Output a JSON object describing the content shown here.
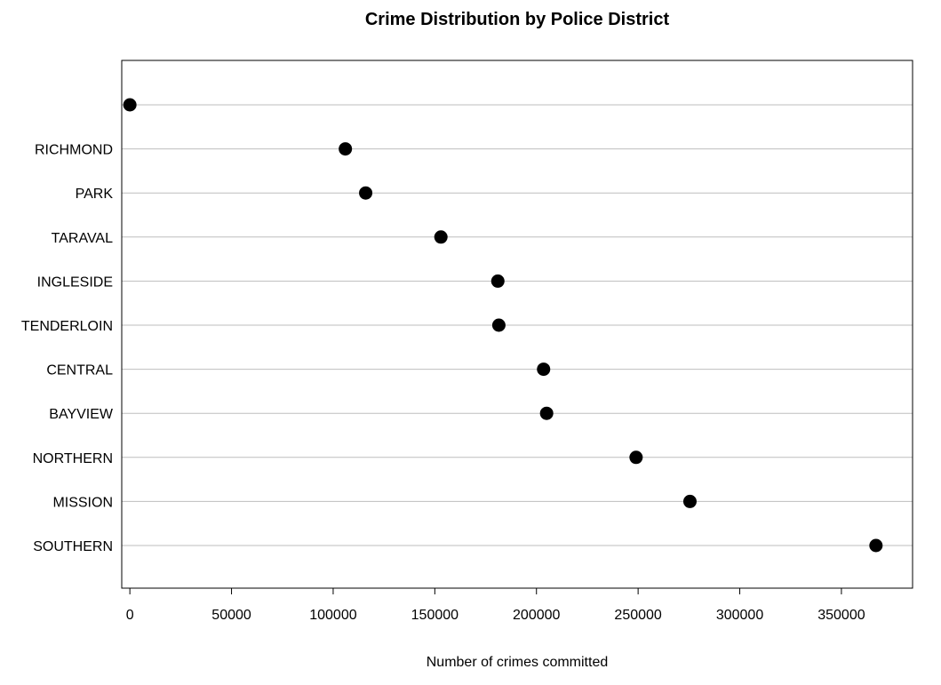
{
  "chart_data": {
    "type": "scatter",
    "title": "Crime Distribution by Police District",
    "xlabel": "Number of crimes committed",
    "ylabel": "",
    "xlim": [
      -4000,
      385000
    ],
    "xticks": [
      0,
      50000,
      100000,
      150000,
      200000,
      250000,
      300000,
      350000
    ],
    "xtick_labels": [
      "0",
      "50000",
      "100000",
      "150000",
      "200000",
      "250000",
      "300000",
      "350000"
    ],
    "grid": "horizontal",
    "point_color": "#000000",
    "grid_color": "#bebebe",
    "categories": [
      "",
      "RICHMOND",
      "PARK",
      "TARAVAL",
      "INGLESIDE",
      "TENDERLOIN",
      "CENTRAL",
      "BAYVIEW",
      "NORTHERN",
      "MISSION",
      "SOUTHERN"
    ],
    "values": [
      0,
      106000,
      116000,
      153000,
      181000,
      181500,
      203500,
      205000,
      249000,
      275500,
      367000
    ]
  }
}
